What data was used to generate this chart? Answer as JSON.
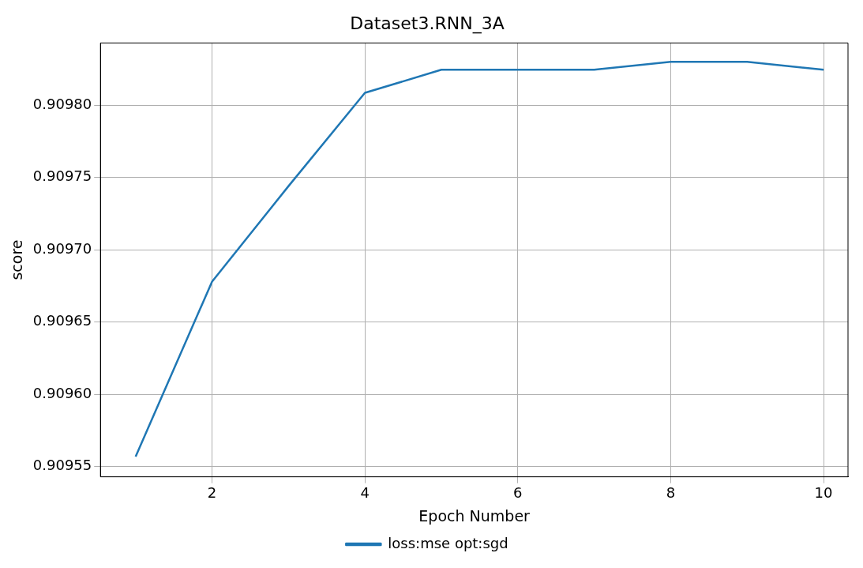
{
  "chart_data": {
    "type": "line",
    "title": "Dataset3.RNN_3A",
    "xlabel": "Epoch Number",
    "ylabel": "score",
    "x": [
      1,
      2,
      3,
      4,
      5,
      6,
      7,
      8,
      9,
      10
    ],
    "series": [
      {
        "name": "loss:mse opt:sgd",
        "color": "#1f77b4",
        "values": [
          0.909557,
          0.909678,
          0.909744,
          0.9098085,
          0.9098245,
          0.9098245,
          0.9098245,
          0.90983,
          0.90983,
          0.9098245
        ]
      }
    ],
    "xlim": [
      0.54,
      10.32
    ],
    "xticks": [
      2,
      4,
      6,
      8,
      10
    ],
    "ylim": [
      0.909543,
      0.909843
    ],
    "yticks": [
      {
        "value": 0.90955,
        "label": "0.90955"
      },
      {
        "value": 0.9096,
        "label": "0.90960"
      },
      {
        "value": 0.90965,
        "label": "0.90965"
      },
      {
        "value": 0.9097,
        "label": "0.90970"
      },
      {
        "value": 0.90975,
        "label": "0.90975"
      },
      {
        "value": 0.9098,
        "label": "0.90980"
      }
    ],
    "grid": true,
    "legend": "bottom",
    "marker": "none",
    "line_style": "solid"
  }
}
